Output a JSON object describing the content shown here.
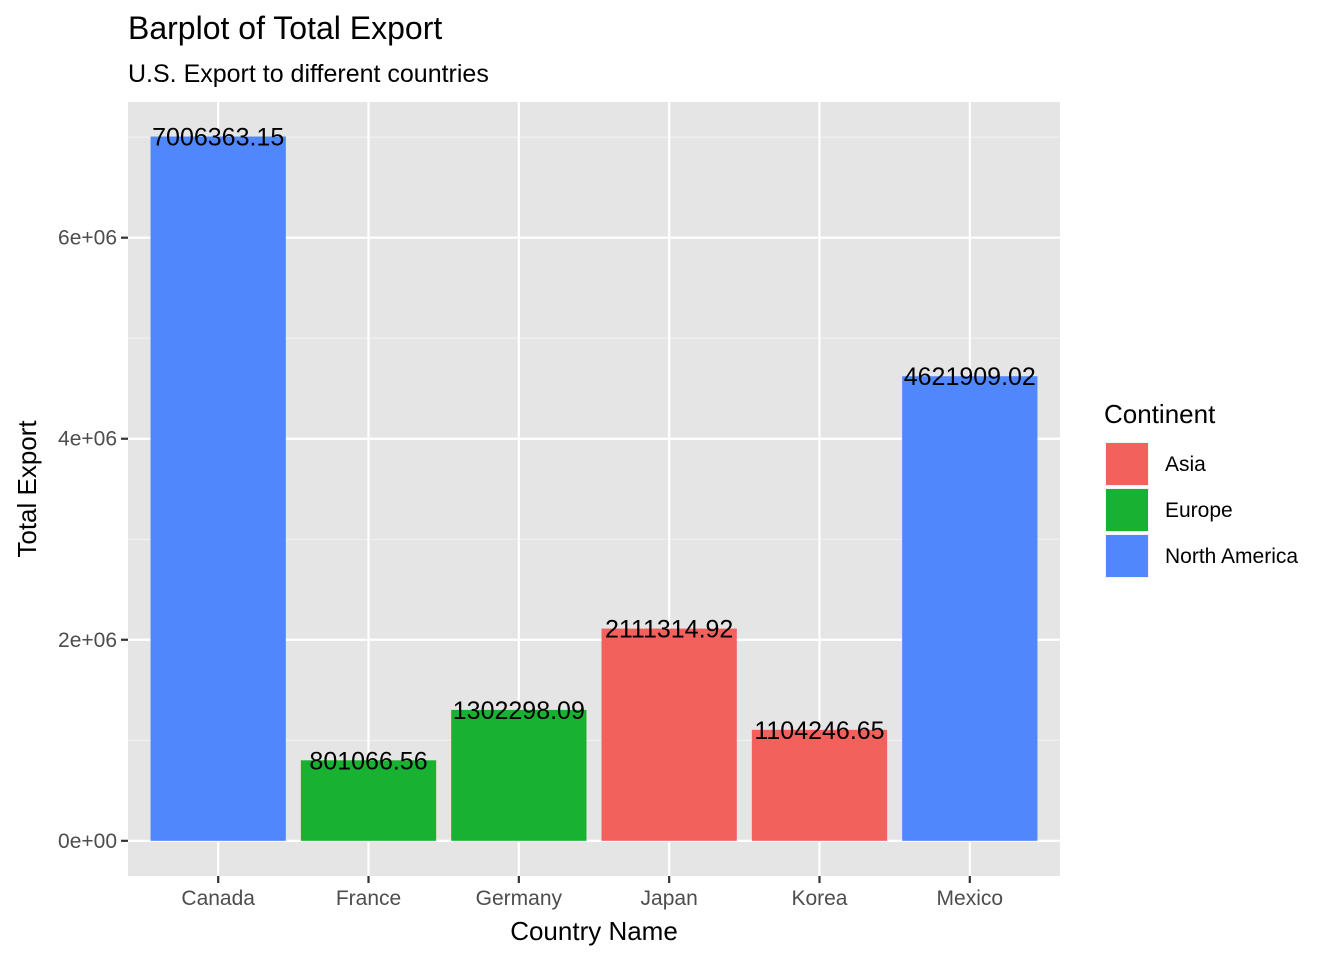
{
  "chart_data": {
    "type": "bar",
    "title": "Barplot of Total Export",
    "subtitle": "U.S. Export to different countries",
    "xlabel": "Country Name",
    "ylabel": "Total Export",
    "categories": [
      "Canada",
      "France",
      "Germany",
      "Japan",
      "Korea",
      "Mexico"
    ],
    "values": [
      7006363.15,
      801066.56,
      1302298.09,
      2111314.92,
      1104246.65,
      4621909.02
    ],
    "value_labels": [
      "7006363.15",
      "801066.56",
      "1302298.09",
      "2111314.92",
      "1104246.65",
      "4621909.02"
    ],
    "groups": [
      "North America",
      "Europe",
      "Europe",
      "Asia",
      "Asia",
      "North America"
    ],
    "ylim": [
      -350000,
      7350000
    ],
    "yticks": [
      0,
      2000000,
      4000000,
      6000000
    ],
    "ytick_labels": [
      "0e+00",
      "2e+06",
      "4e+06",
      "6e+06"
    ],
    "grid": true,
    "panel_background": "#e5e5e5",
    "legend": {
      "title": "Continent",
      "position": "right",
      "entries": [
        {
          "label": "Asia",
          "color": "#f2615c"
        },
        {
          "label": "Europe",
          "color": "#19b131"
        },
        {
          "label": "North America",
          "color": "#5087fd"
        }
      ]
    }
  }
}
